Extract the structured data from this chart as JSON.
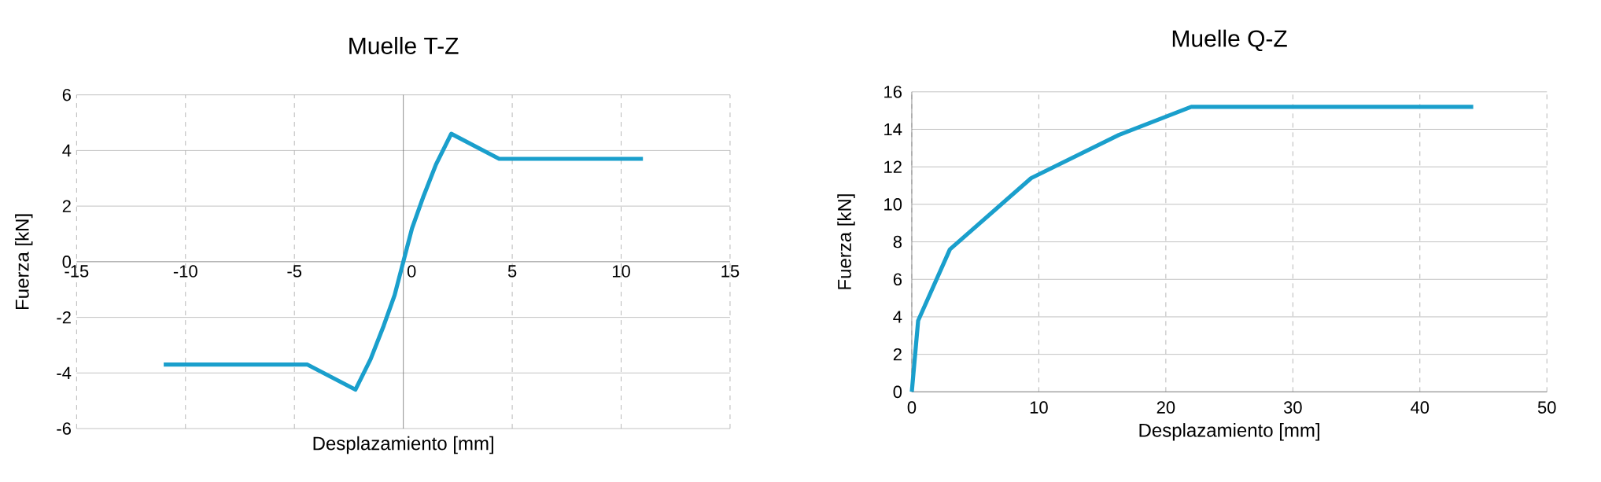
{
  "chart_data": [
    {
      "type": "line",
      "title": "Muelle T-Z",
      "xlabel": "Desplazamiento [mm]",
      "ylabel": "Fuerza  [kN]",
      "series": [
        {
          "color": "#1a9fcc",
          "x": [
            -11,
            -4.4,
            -2.2,
            -1.5,
            -0.9,
            -0.4,
            0,
            0.4,
            0.9,
            1.5,
            2.2,
            4.4,
            11
          ],
          "values": [
            -3.7,
            -3.7,
            -4.6,
            -3.5,
            -2.3,
            -1.2,
            0,
            1.2,
            2.3,
            3.5,
            4.6,
            3.7,
            3.7
          ]
        }
      ],
      "xlim": [
        -15,
        15
      ],
      "ylim": [
        -6,
        6
      ],
      "xticks": [
        -15,
        -10,
        -5,
        0,
        5,
        10,
        15
      ],
      "yticks": [
        -6,
        -4,
        -2,
        0,
        2,
        4,
        6
      ],
      "grid": true
    },
    {
      "type": "line",
      "title": "Muelle Q-Z",
      "xlabel": "Desplazamiento [mm]",
      "ylabel": "Fuerza [kN]",
      "series": [
        {
          "color": "#1a9fcc",
          "x": [
            0,
            0.5,
            3,
            9.4,
            16.3,
            22,
            44.2
          ],
          "values": [
            0,
            3.8,
            7.6,
            11.4,
            13.7,
            15.2,
            15.2
          ]
        }
      ],
      "xlim": [
        0,
        50
      ],
      "ylim": [
        0,
        16
      ],
      "xticks": [
        0,
        10,
        20,
        30,
        40,
        50
      ],
      "yticks": [
        0,
        2,
        4,
        6,
        8,
        10,
        12,
        14,
        16
      ],
      "grid": true
    }
  ]
}
